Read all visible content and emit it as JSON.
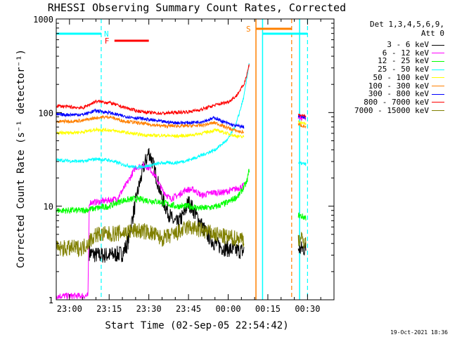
{
  "chart_data": {
    "type": "line",
    "title": "RHESSI Observing Summary Count Rates, Corrected",
    "xlabel": "Start Time (02-Sep-05 22:54:42)",
    "ylabel": "Corrected Count Rate (s⁻¹ detector⁻¹)",
    "yscale": "log",
    "ylim": [
      1,
      1000
    ],
    "y_ticks": [
      "1",
      "10",
      "100",
      "1000"
    ],
    "x_range_min": [
      -5,
      100
    ],
    "x_ticks": [
      {
        "label": "23:00",
        "min": 0
      },
      {
        "label": "23:15",
        "min": 15
      },
      {
        "label": "23:30",
        "min": 30
      },
      {
        "label": "23:45",
        "min": 45
      },
      {
        "label": "00:00",
        "min": 60
      },
      {
        "label": "00:15",
        "min": 75
      },
      {
        "label": "00:30",
        "min": 90
      }
    ],
    "detector_info": [
      "Det 1,3,4,5,6,9,",
      "Att 0"
    ],
    "annotations": [
      {
        "label": "N",
        "color": "#00ffff",
        "x_min": 12
      },
      {
        "label": "F",
        "color": "#ff0000",
        "x_start": 17,
        "x_end": 30
      },
      {
        "label": "S",
        "color": "#ff8000",
        "x_start": 70.5,
        "x_end": 84
      }
    ],
    "night_bars": [
      {
        "x_start": -5,
        "x_end": 12
      },
      {
        "x_start": 73,
        "x_end": 90
      }
    ],
    "dashed_lines": [
      {
        "color": "#00ffff",
        "x_min": 12
      },
      {
        "color": "#ff8000",
        "x_min": 84
      },
      {
        "color": "#00ffff",
        "x_min": 90
      }
    ],
    "solid_lines": [
      {
        "color": "#ff8000",
        "x_min": 70.5
      },
      {
        "color": "#00ffff",
        "x_min": 73
      },
      {
        "color": "#00ffff",
        "x_min": 87
      }
    ],
    "series": [
      {
        "name": "3 - 6 keV",
        "color": "#000000",
        "points": [
          [
            7.5,
            3.2
          ],
          [
            10,
            3.0
          ],
          [
            15,
            3.0
          ],
          [
            20,
            3.1
          ],
          [
            22,
            4
          ],
          [
            24,
            8
          ],
          [
            26,
            15
          ],
          [
            28,
            26
          ],
          [
            30,
            38
          ],
          [
            31,
            32
          ],
          [
            33,
            20
          ],
          [
            35,
            12
          ],
          [
            37,
            9
          ],
          [
            39,
            7
          ],
          [
            41,
            6.5
          ],
          [
            43,
            8
          ],
          [
            45,
            11
          ],
          [
            47,
            9
          ],
          [
            49,
            7
          ],
          [
            52,
            5
          ],
          [
            55,
            4
          ],
          [
            58,
            3.6
          ],
          [
            62,
            3.4
          ],
          [
            66,
            3.3
          ]
        ],
        "tail": [
          [
            86.5,
            3.5
          ],
          [
            89.5,
            3.5
          ]
        ]
      },
      {
        "name": "6 - 12 keV",
        "color": "#ff00ff",
        "points": [
          [
            -5,
            1.1
          ],
          [
            7,
            1.1
          ],
          [
            7.5,
            11
          ],
          [
            10,
            11
          ],
          [
            14,
            11.5
          ],
          [
            18,
            12
          ],
          [
            22,
            18
          ],
          [
            25,
            26
          ],
          [
            28,
            27
          ],
          [
            30,
            26
          ],
          [
            32,
            22
          ],
          [
            35,
            15
          ],
          [
            38,
            12
          ],
          [
            41,
            13
          ],
          [
            44,
            15
          ],
          [
            47,
            15
          ],
          [
            50,
            13
          ],
          [
            54,
            14
          ],
          [
            58,
            14
          ],
          [
            62,
            15
          ],
          [
            66,
            16.5
          ]
        ],
        "tail": [
          [
            86.5,
            90
          ],
          [
            89.5,
            85
          ]
        ]
      },
      {
        "name": "12 - 25 keV",
        "color": "#00ff00",
        "points": [
          [
            -5,
            9
          ],
          [
            5,
            9
          ],
          [
            10,
            9.5
          ],
          [
            15,
            10
          ],
          [
            20,
            11.5
          ],
          [
            25,
            12
          ],
          [
            30,
            11.5
          ],
          [
            35,
            11
          ],
          [
            40,
            10
          ],
          [
            45,
            10
          ],
          [
            50,
            9.5
          ],
          [
            55,
            9.8
          ],
          [
            60,
            11
          ],
          [
            64,
            13
          ],
          [
            67,
            18
          ],
          [
            68,
            25
          ]
        ],
        "tail": [
          [
            86.5,
            8
          ],
          [
            89.5,
            7.5
          ]
        ]
      },
      {
        "name": "25 - 50 keV",
        "color": "#00ffff",
        "points": [
          [
            -5,
            31
          ],
          [
            5,
            30
          ],
          [
            10,
            32
          ],
          [
            15,
            31
          ],
          [
            20,
            28
          ],
          [
            25,
            26
          ],
          [
            30,
            27
          ],
          [
            35,
            29
          ],
          [
            40,
            29
          ],
          [
            45,
            31
          ],
          [
            50,
            35
          ],
          [
            55,
            40
          ],
          [
            60,
            52
          ],
          [
            63,
            75
          ],
          [
            66,
            150
          ],
          [
            68,
            350
          ]
        ],
        "tail": [
          [
            86.5,
            29
          ],
          [
            89.5,
            28
          ]
        ]
      },
      {
        "name": "50 - 100 keV",
        "color": "#ffff00",
        "points": [
          [
            -5,
            60
          ],
          [
            5,
            62
          ],
          [
            10,
            66
          ],
          [
            15,
            65
          ],
          [
            20,
            62
          ],
          [
            25,
            59
          ],
          [
            30,
            57
          ],
          [
            35,
            57
          ],
          [
            40,
            56
          ],
          [
            45,
            57
          ],
          [
            50,
            60
          ],
          [
            55,
            65
          ],
          [
            58,
            62
          ],
          [
            62,
            57
          ],
          [
            65,
            55
          ],
          [
            66,
            55
          ]
        ],
        "tail": [
          [
            86.5,
            80
          ],
          [
            89.5,
            75
          ]
        ]
      },
      {
        "name": "100 - 300 keV",
        "color": "#ff8000",
        "points": [
          [
            -5,
            80
          ],
          [
            5,
            82
          ],
          [
            10,
            88
          ],
          [
            15,
            90
          ],
          [
            20,
            82
          ],
          [
            25,
            78
          ],
          [
            30,
            75
          ],
          [
            35,
            72
          ],
          [
            40,
            72
          ],
          [
            45,
            72
          ],
          [
            50,
            73
          ],
          [
            55,
            78
          ],
          [
            58,
            72
          ],
          [
            62,
            65
          ],
          [
            65,
            62
          ],
          [
            66,
            62
          ]
        ],
        "tail": [
          [
            86.5,
            75
          ],
          [
            89.5,
            70
          ]
        ]
      },
      {
        "name": "300 - 800 keV",
        "color": "#0000ff",
        "points": [
          [
            -5,
            95
          ],
          [
            5,
            95
          ],
          [
            10,
            105
          ],
          [
            15,
            100
          ],
          [
            20,
            92
          ],
          [
            25,
            88
          ],
          [
            30,
            84
          ],
          [
            35,
            80
          ],
          [
            40,
            78
          ],
          [
            45,
            78
          ],
          [
            50,
            80
          ],
          [
            55,
            88
          ],
          [
            58,
            80
          ],
          [
            62,
            73
          ],
          [
            66,
            70
          ]
        ],
        "tail": [
          [
            86.5,
            92
          ],
          [
            89.5,
            88
          ]
        ]
      },
      {
        "name": "800 - 7000 keV",
        "color": "#ff0000",
        "points": [
          [
            -5,
            118
          ],
          [
            5,
            112
          ],
          [
            10,
            132
          ],
          [
            15,
            128
          ],
          [
            20,
            115
          ],
          [
            25,
            105
          ],
          [
            30,
            100
          ],
          [
            35,
            98
          ],
          [
            40,
            100
          ],
          [
            45,
            102
          ],
          [
            50,
            108
          ],
          [
            55,
            120
          ],
          [
            60,
            130
          ],
          [
            63,
            150
          ],
          [
            66,
            200
          ],
          [
            68,
            330
          ]
        ],
        "tail": [
          [
            86.5,
            95
          ],
          [
            89.5,
            92
          ]
        ]
      },
      {
        "name": "7000 - 15000 keV",
        "color": "#808000",
        "points": [
          [
            -5,
            3.5
          ],
          [
            5,
            3.6
          ],
          [
            10,
            5
          ],
          [
            15,
            5
          ],
          [
            20,
            5.2
          ],
          [
            25,
            5.5
          ],
          [
            30,
            5.3
          ],
          [
            35,
            4.5
          ],
          [
            40,
            5
          ],
          [
            45,
            6
          ],
          [
            50,
            5.5
          ],
          [
            55,
            5
          ],
          [
            60,
            4.6
          ],
          [
            66,
            4.5
          ]
        ],
        "tail": [
          [
            86.5,
            4.5
          ],
          [
            89.5,
            4.2
          ]
        ]
      }
    ],
    "footer_date": "19-Oct-2021 18:36"
  }
}
